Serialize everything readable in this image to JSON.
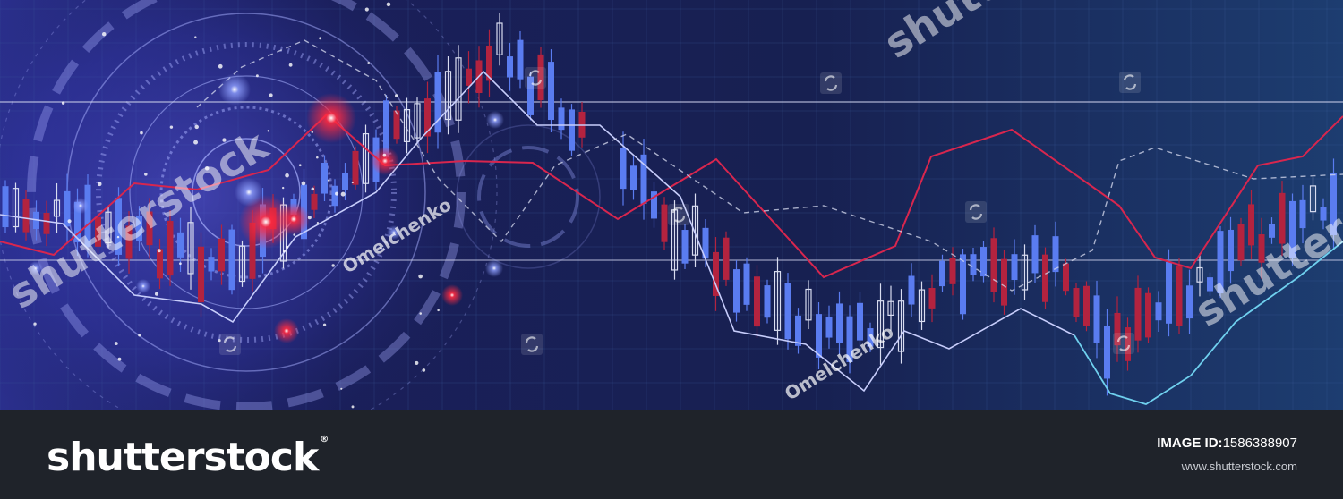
{
  "image": {
    "description_icons": [
      "candlestick-chart",
      "hud-circle"
    ],
    "colors": {
      "background_dark": "#14173d",
      "background_right": "#1c3a6b",
      "bull_candle": "#5a7cf0",
      "bear_candle": "#b3233f",
      "neutral_candle": "#d8dcf0",
      "red_line": "#d8264e",
      "cyan_line": "#6fd0ee",
      "white_line": "#c7cdfb",
      "glow_red": "#ff2a40"
    }
  },
  "watermarks": {
    "brand": "shutterstock",
    "author": "Omelchenko"
  },
  "footer": {
    "logo_text": "shutterstock",
    "logo_tm": "®",
    "image_id_label": "IMAGE ID:",
    "image_id_value": "1586388907",
    "site": "www.shutterstock.com"
  }
}
